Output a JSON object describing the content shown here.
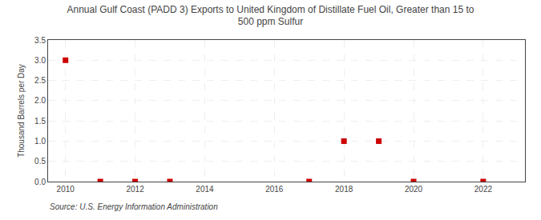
{
  "chart_data": {
    "type": "scatter",
    "title": "Annual Gulf Coast (PADD 3) Exports to United Kingdom of Distillate Fuel Oil, Greater than 15 to\n500 ppm Sulfur",
    "ylabel": "Thousand Barrels per Day",
    "annotations": [
      "Source: U.S. Energy Information Administration"
    ],
    "x": [
      2010,
      2011,
      2012,
      2013,
      2017,
      2018,
      2019,
      2020,
      2022
    ],
    "values": [
      3.0,
      0.0,
      0.0,
      0.0,
      0.0,
      1.0,
      1.0,
      0.0,
      0.0
    ],
    "color": "#cc0000",
    "marker": "square",
    "xlim": [
      2009.5,
      2023.2
    ],
    "xticks": [
      2010,
      2012,
      2014,
      2016,
      2018,
      2020,
      2022
    ],
    "ylim": [
      0.0,
      3.5
    ],
    "yticks": [
      {
        "value": 0.0,
        "label": "0.0"
      },
      0.5,
      {
        "value": 1.0,
        "label": "1.0"
      },
      1.5,
      {
        "value": 2.0,
        "label": "2.0"
      },
      2.5,
      {
        "value": 3.0,
        "label": "3.0"
      },
      3.5
    ],
    "grid": true
  }
}
